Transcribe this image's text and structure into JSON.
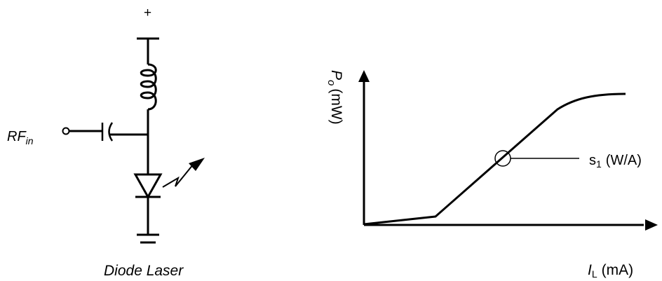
{
  "circuit": {
    "supply_label": "+",
    "input_label": "RF",
    "input_subscript": "in",
    "caption": "Diode Laser"
  },
  "plot": {
    "y_axis_label": "P",
    "y_axis_subscript": "o",
    "y_axis_unit": "(mW)",
    "x_axis_label": "I",
    "x_axis_subscript": "L",
    "x_axis_unit": "(mA)",
    "slope_label": "s",
    "slope_subscript": "1",
    "slope_unit": "(W/A)"
  },
  "colors": {
    "ink": "#000000",
    "background": "#ffffff"
  }
}
